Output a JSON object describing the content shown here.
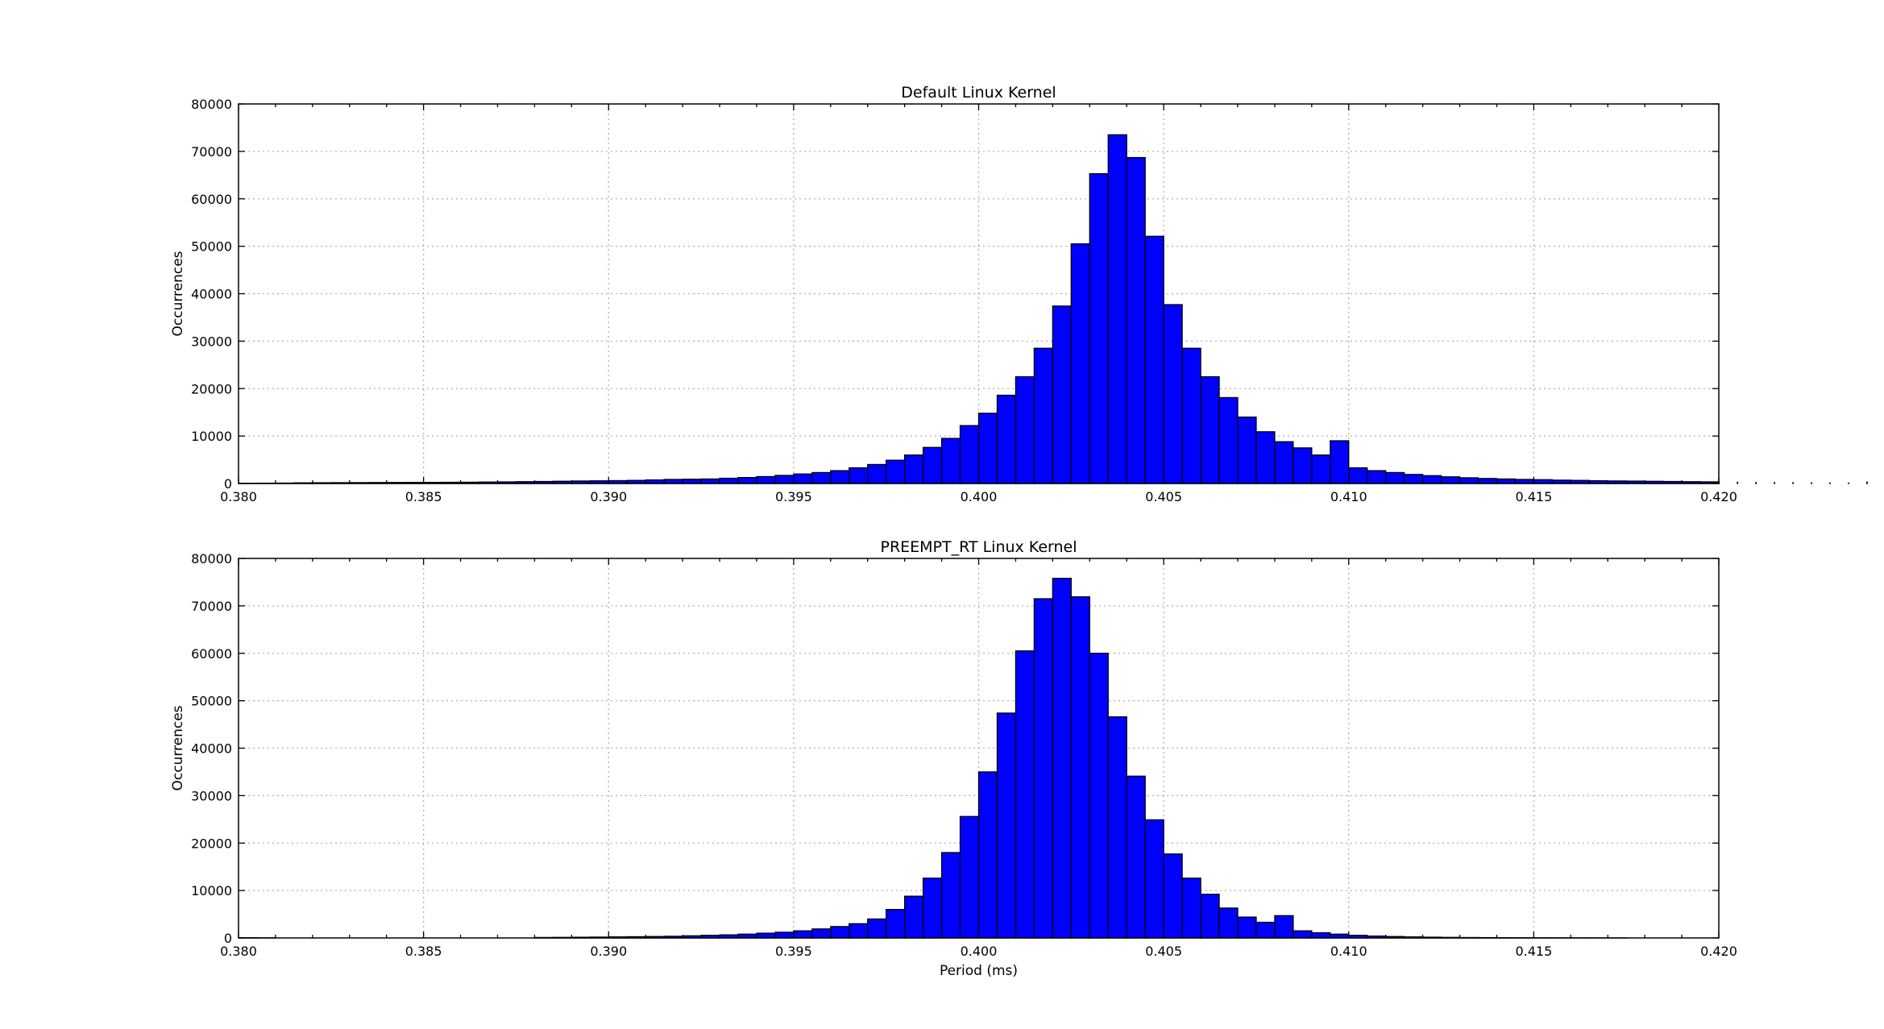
{
  "colors": {
    "bar_fill": "#0000ff",
    "bar_edge": "#000000",
    "grid": "#b0b0b0"
  },
  "chart_data": [
    {
      "type": "bar",
      "title": "Default Linux Kernel",
      "xlabel": "",
      "ylabel": "Occurrences",
      "xlim": [
        0.38,
        0.42
      ],
      "ylim": [
        0,
        80000
      ],
      "xticks": [
        "0.380",
        "0.385",
        "0.390",
        "0.395",
        "0.400",
        "0.405",
        "0.410",
        "0.415",
        "0.420"
      ],
      "yticks": [
        "0",
        "10000",
        "20000",
        "30000",
        "40000",
        "50000",
        "60000",
        "70000",
        "80000"
      ],
      "grid": true,
      "bin_start": 0.38,
      "bin_width": 0.0005,
      "values": [
        40,
        60,
        80,
        130,
        150,
        170,
        180,
        200,
        210,
        220,
        230,
        250,
        260,
        300,
        330,
        380,
        420,
        470,
        520,
        560,
        600,
        650,
        750,
        850,
        900,
        950,
        1100,
        1250,
        1450,
        1700,
        2000,
        2300,
        2700,
        3300,
        4000,
        4900,
        6000,
        7600,
        9500,
        12200,
        14800,
        18600,
        22500,
        28500,
        37400,
        50500,
        65300,
        73500,
        68700,
        52100,
        37700,
        28500,
        22500,
        18100,
        14000,
        10900,
        8800,
        7500,
        6000,
        9000,
        3300,
        2700,
        2300,
        1900,
        1650,
        1400,
        1200,
        1050,
        950,
        850,
        800,
        700,
        650,
        580,
        530,
        500,
        460,
        420,
        380,
        340,
        290,
        250,
        210,
        180,
        160,
        130,
        100,
        80,
        300,
        500
      ]
    },
    {
      "type": "bar",
      "title": "PREEMPT_RT Linux Kernel",
      "xlabel": "Period (ms)",
      "ylabel": "Occurrences",
      "xlim": [
        0.38,
        0.42
      ],
      "ylim": [
        0,
        80000
      ],
      "xticks": [
        "0.380",
        "0.385",
        "0.390",
        "0.395",
        "0.400",
        "0.405",
        "0.410",
        "0.415",
        "0.420"
      ],
      "yticks": [
        "0",
        "10000",
        "20000",
        "30000",
        "40000",
        "50000",
        "60000",
        "70000",
        "80000"
      ],
      "grid": true,
      "bin_start": 0.38,
      "bin_width": 0.0005,
      "values": [
        50,
        20,
        0,
        0,
        0,
        0,
        0,
        0,
        0,
        0,
        0,
        0,
        0,
        0,
        0,
        0,
        100,
        120,
        150,
        180,
        220,
        260,
        300,
        350,
        450,
        550,
        650,
        800,
        1000,
        1200,
        1500,
        1900,
        2400,
        3000,
        4000,
        6000,
        8800,
        12600,
        18000,
        25600,
        35000,
        47400,
        60500,
        71500,
        75800,
        71900,
        60000,
        46600,
        34100,
        24900,
        17700,
        12600,
        9200,
        6300,
        4400,
        3300,
        4700,
        1500,
        1100,
        800,
        550,
        400,
        300,
        220,
        160,
        120,
        90,
        70,
        50,
        40,
        30,
        20,
        15,
        10,
        5,
        0,
        0,
        0,
        0,
        0,
        0,
        0,
        0,
        0,
        0,
        0,
        0,
        0,
        0,
        0
      ]
    }
  ]
}
